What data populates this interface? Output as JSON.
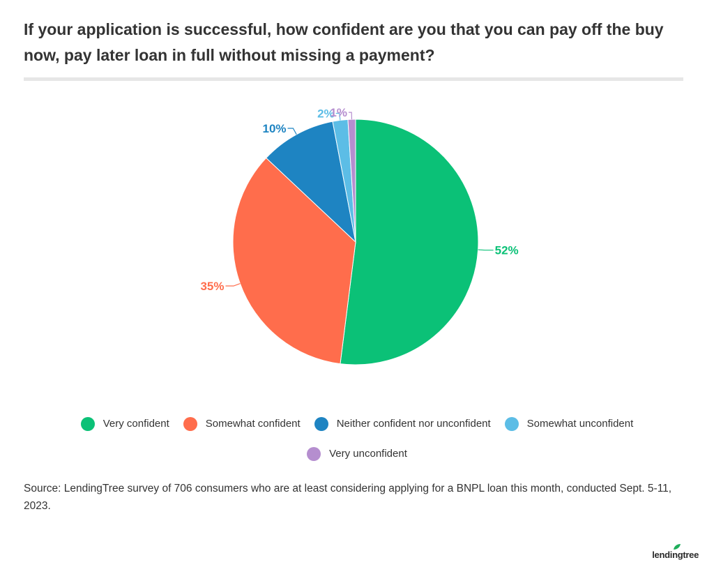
{
  "title": "If your application is successful, how confident are you that you can pay off the buy now, pay later loan in full without missing a payment?",
  "source": "Source: LendingTree survey of 706 consumers who are at least considering applying for a BNPL loan this month, conducted Sept. 5-11, 2023.",
  "logo_text": "lendingtree",
  "chart_data": {
    "type": "pie",
    "title": "If your application is successful, how confident are you that you can pay off the buy now, pay later loan in full without missing a payment?",
    "labels": [
      "Very confident",
      "Somewhat confident",
      "Neither confident nor unconfident",
      "Somewhat unconfident",
      "Very unconfident"
    ],
    "values": [
      52,
      35,
      10,
      2,
      1
    ],
    "value_labels": [
      "52%",
      "35%",
      "10%",
      "2%",
      "1%"
    ],
    "colors": [
      "#0bc177",
      "#ff6d4c",
      "#1e84c2",
      "#5cbde6",
      "#b58ecf"
    ],
    "legend_position": "bottom"
  }
}
